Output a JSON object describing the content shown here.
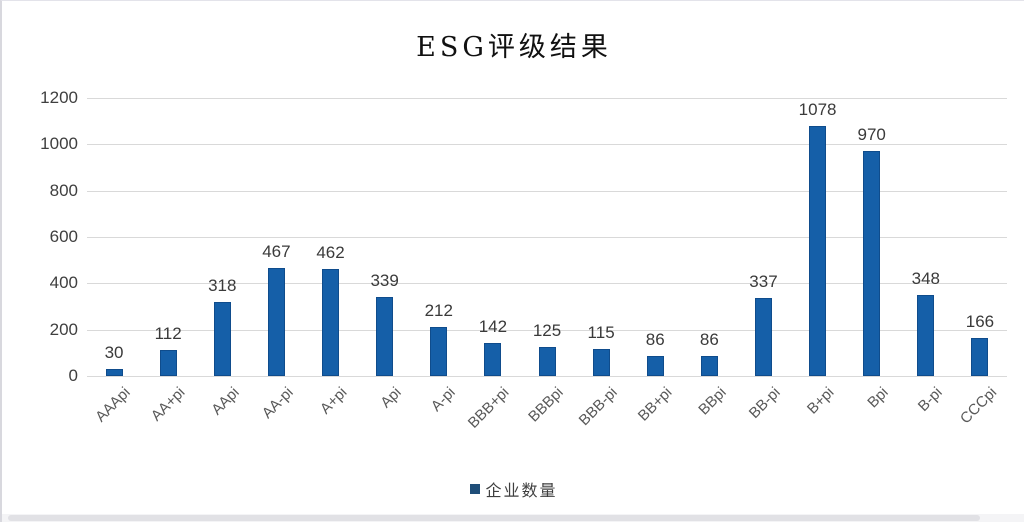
{
  "chart_data": {
    "type": "bar",
    "title": "ESG评级结果",
    "categories": [
      "AAApi",
      "AA+pi",
      "AApi",
      "AA-pi",
      "A+pi",
      "Api",
      "A-pi",
      "BBB+pi",
      "BBBpi",
      "BBB-pi",
      "BB+pi",
      "BBpi",
      "BB-pi",
      "B+pi",
      "Bpi",
      "B-pi",
      "CCCpi"
    ],
    "values": [
      30,
      112,
      318,
      467,
      462,
      339,
      212,
      142,
      125,
      115,
      86,
      86,
      337,
      1078,
      970,
      348,
      166
    ],
    "ylim": [
      0,
      1200
    ],
    "ytick_step": 200,
    "ytick_labels": [
      "0",
      "200",
      "400",
      "600",
      "800",
      "1000",
      "1200"
    ],
    "legend": [
      "企业数量"
    ],
    "grid": "horizontal",
    "legend_position": "bottom-center",
    "colors": {
      "bar_fill": "#155fa8",
      "bar_border": "#0f4c8c",
      "legend_marker": "#1f4e79",
      "gridline": "#d9d9d9",
      "value_label": "#3a3a3a",
      "axis_label": "#595959"
    }
  }
}
